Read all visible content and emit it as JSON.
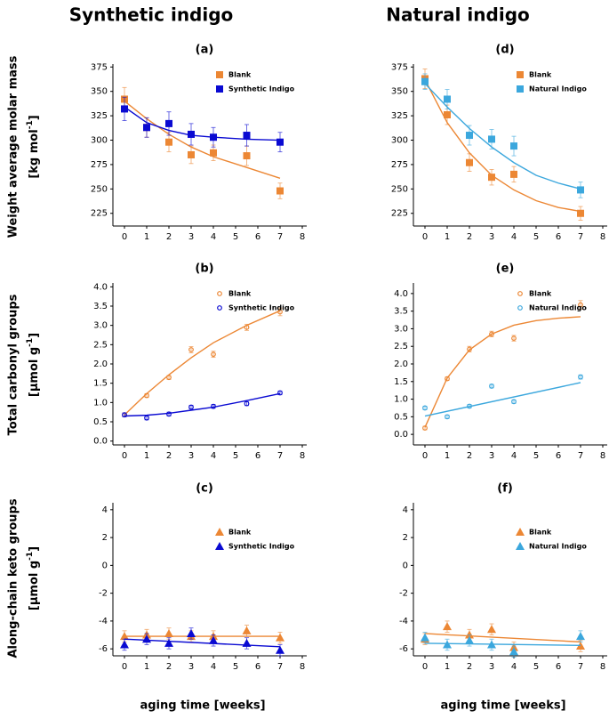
{
  "columns": [
    "Synthetic indigo",
    "Natural indigo"
  ],
  "chart_data": [
    {
      "type": "scatter",
      "title": "(a)",
      "ylabel": {
        "line1": "Weight average molar mass",
        "line2": "[kg mol",
        "sup": "-1",
        "end": "]"
      },
      "marker": "square",
      "xlim": [
        0,
        8
      ],
      "xticks": [
        0,
        1,
        2,
        3,
        4,
        5,
        6,
        7,
        8
      ],
      "ylim": [
        212,
        378
      ],
      "yticks": [
        225,
        250,
        275,
        300,
        325,
        350,
        375
      ],
      "x": [
        0,
        1,
        2,
        3,
        4,
        5.5,
        7
      ],
      "series": [
        {
          "name": "Blank",
          "color": "#ec8734",
          "values": [
            342,
            313,
            298,
            285,
            287,
            284,
            248
          ],
          "errors": [
            12,
            10,
            10,
            9,
            8,
            10,
            8
          ],
          "fit": {
            "x": [
              0,
              1,
              2,
              3,
              4,
              5.5,
              7
            ],
            "values": [
              340,
              322,
              306,
              293,
              283,
              272,
              261
            ]
          }
        },
        {
          "name": "Synthetic Indigo",
          "color": "#0a0ad2",
          "values": [
            332,
            313,
            317,
            306,
            303,
            305,
            298
          ],
          "errors": [
            12,
            10,
            12,
            11,
            10,
            11,
            10
          ],
          "fit": {
            "x": [
              0,
              1,
              2,
              3,
              4,
              5.5,
              7
            ],
            "values": [
              334,
              318,
              310,
              305,
              303,
              301,
              300
            ]
          }
        }
      ]
    },
    {
      "type": "scatter",
      "title": "(b)",
      "ylabel": {
        "line1": "Total carbonyl groups",
        "line2": "[µmol g",
        "sup": "-1",
        "end": "]"
      },
      "marker": "circle",
      "xlim": [
        0,
        8
      ],
      "xticks": [
        0,
        1,
        2,
        3,
        4,
        5,
        6,
        7,
        8
      ],
      "ylim": [
        -0.1,
        4.1
      ],
      "yticks": [
        {
          "value": 0,
          "label": "0.0"
        },
        0.5,
        {
          "value": 1,
          "label": "1.0"
        },
        1.5,
        {
          "value": 2,
          "label": "2.0"
        },
        2.5,
        {
          "value": 3,
          "label": "3.0"
        },
        3.5,
        {
          "value": 4,
          "label": "4.0"
        }
      ],
      "x": [
        0,
        1,
        2,
        3,
        4,
        5.5,
        7
      ],
      "series": [
        {
          "name": "Blank",
          "color": "#ec8734",
          "values": [
            0.68,
            1.18,
            1.65,
            2.37,
            2.25,
            2.95,
            3.35
          ],
          "errors": [
            0.05,
            0.05,
            0.05,
            0.08,
            0.08,
            0.08,
            0.1
          ],
          "fit": {
            "x": [
              0,
              1,
              2,
              3,
              4,
              5.5,
              7
            ],
            "values": [
              0.68,
              1.23,
              1.72,
              2.16,
              2.55,
              3.0,
              3.38
            ]
          }
        },
        {
          "name": "Synthetic Indigo",
          "color": "#0a0ad2",
          "values": [
            0.68,
            0.6,
            0.7,
            0.88,
            0.9,
            0.97,
            1.25
          ],
          "errors": [
            0.05,
            0.05,
            0.05,
            0.05,
            0.05,
            0.05,
            0.05
          ],
          "fit": {
            "x": [
              0,
              1,
              2,
              3,
              4,
              5.5,
              7
            ],
            "values": [
              0.65,
              0.67,
              0.72,
              0.8,
              0.88,
              1.05,
              1.23
            ]
          }
        }
      ]
    },
    {
      "type": "scatter",
      "title": "(c)",
      "ylabel": {
        "line1": "Along-chain keto groups",
        "line2": "[µmol g",
        "sup": "-1",
        "end": "]"
      },
      "xlabel": "aging time [weeks]",
      "marker": "triangle",
      "xlim": [
        0,
        8
      ],
      "xticks": [
        0,
        1,
        2,
        3,
        4,
        5,
        6,
        7,
        8
      ],
      "ylim": [
        -6.5,
        4.5
      ],
      "yticks": [
        -6,
        -4,
        -2,
        0,
        2,
        4
      ],
      "x": [
        0,
        1,
        2,
        3,
        4,
        5.5,
        7
      ],
      "series": [
        {
          "name": "Blank",
          "color": "#ec8734",
          "values": [
            -5.1,
            -5.0,
            -4.9,
            -5.1,
            -5.1,
            -4.7,
            -5.2
          ],
          "errors": [
            0.4,
            0.4,
            0.4,
            0.4,
            0.4,
            0.4,
            0.4
          ],
          "fit": {
            "x": [
              0,
              7
            ],
            "values": [
              -5.1,
              -5.1
            ]
          }
        },
        {
          "name": "Synthetic Indigo",
          "color": "#0a0ad2",
          "values": [
            -5.7,
            -5.3,
            -5.6,
            -4.9,
            -5.4,
            -5.6,
            -6.1
          ],
          "errors": [
            0.4,
            0.4,
            0.4,
            0.4,
            0.4,
            0.4,
            0.4
          ],
          "fit": {
            "x": [
              0,
              7
            ],
            "values": [
              -5.3,
              -5.85
            ]
          }
        }
      ]
    },
    {
      "type": "scatter",
      "title": "(d)",
      "marker": "square",
      "xlim": [
        0,
        8
      ],
      "xticks": [
        0,
        1,
        2,
        3,
        4,
        5,
        6,
        7,
        8
      ],
      "ylim": [
        212,
        378
      ],
      "yticks": [
        225,
        250,
        275,
        300,
        325,
        350,
        375
      ],
      "x": [
        0,
        1,
        2,
        3,
        4,
        7
      ],
      "series": [
        {
          "name": "Blank",
          "color": "#ec8734",
          "values": [
            363,
            326,
            277,
            262,
            265,
            225
          ],
          "errors": [
            10,
            10,
            9,
            8,
            8,
            7
          ],
          "fit": {
            "x": [
              0,
              1,
              2,
              3,
              4,
              5,
              6,
              7
            ],
            "values": [
              362,
              318,
              287,
              264,
              249,
              238,
              231,
              227
            ]
          }
        },
        {
          "name": "Natural Indigo",
          "color": "#3ba7dd",
          "values": [
            360,
            342,
            305,
            301,
            294,
            249
          ],
          "errors": [
            8,
            10,
            10,
            10,
            10,
            8
          ],
          "fit": {
            "x": [
              0,
              1,
              2,
              3,
              4,
              5,
              6,
              7
            ],
            "values": [
              358,
              334,
              312,
              293,
              277,
              264,
              256,
              250
            ]
          }
        }
      ]
    },
    {
      "type": "scatter",
      "title": "(e)",
      "marker": "circle",
      "xlim": [
        0,
        8
      ],
      "xticks": [
        0,
        1,
        2,
        3,
        4,
        5,
        6,
        7,
        8
      ],
      "ylim": [
        -0.3,
        4.3
      ],
      "yticks": [
        {
          "value": 0,
          "label": "0.0"
        },
        0.5,
        {
          "value": 1,
          "label": "1.0"
        },
        1.5,
        {
          "value": 2,
          "label": "2.0"
        },
        2.5,
        {
          "value": 3,
          "label": "3.0"
        },
        3.5,
        {
          "value": 4,
          "label": "4.0"
        }
      ],
      "x": [
        0,
        1,
        2,
        3,
        4,
        7
      ],
      "series": [
        {
          "name": "Blank",
          "color": "#ec8734",
          "values": [
            0.18,
            1.58,
            2.42,
            2.85,
            2.73,
            3.68
          ],
          "errors": [
            0.05,
            0.05,
            0.08,
            0.08,
            0.08,
            0.12
          ],
          "fit": {
            "x": [
              0,
              1,
              2,
              3,
              4,
              5,
              6,
              7
            ],
            "values": [
              0.2,
              1.6,
              2.4,
              2.85,
              3.1,
              3.23,
              3.3,
              3.34
            ]
          }
        },
        {
          "name": "Natural Indigo",
          "color": "#3ba7dd",
          "values": [
            0.75,
            0.5,
            0.8,
            1.37,
            0.93,
            1.63
          ],
          "errors": [
            0.05,
            0.05,
            0.05,
            0.05,
            0.05,
            0.06
          ],
          "fit": {
            "x": [
              0,
              7
            ],
            "values": [
              0.52,
              1.47
            ]
          }
        }
      ]
    },
    {
      "type": "scatter",
      "title": "(f)",
      "xlabel": "aging time [weeks]",
      "marker": "triangle",
      "xlim": [
        0,
        8
      ],
      "xticks": [
        0,
        1,
        2,
        3,
        4,
        5,
        6,
        7,
        8
      ],
      "ylim": [
        -6.5,
        4.5
      ],
      "yticks": [
        -6,
        -4,
        -2,
        0,
        2,
        4
      ],
      "x": [
        0,
        1,
        2,
        3,
        4,
        7
      ],
      "series": [
        {
          "name": "Blank",
          "color": "#ec8734",
          "values": [
            -5.3,
            -4.4,
            -5.0,
            -4.6,
            -5.9,
            -5.8
          ],
          "errors": [
            0.4,
            0.4,
            0.4,
            0.4,
            0.4,
            0.4
          ],
          "fit": {
            "x": [
              0,
              7
            ],
            "values": [
              -4.9,
              -5.5
            ]
          }
        },
        {
          "name": "Natural Indigo",
          "color": "#3ba7dd",
          "values": [
            -5.2,
            -5.7,
            -5.4,
            -5.7,
            -6.2,
            -5.1
          ],
          "errors": [
            0.4,
            0.4,
            0.4,
            0.4,
            0.4,
            0.4
          ],
          "fit": {
            "x": [
              0,
              7
            ],
            "values": [
              -5.6,
              -5.75
            ]
          }
        }
      ]
    }
  ]
}
